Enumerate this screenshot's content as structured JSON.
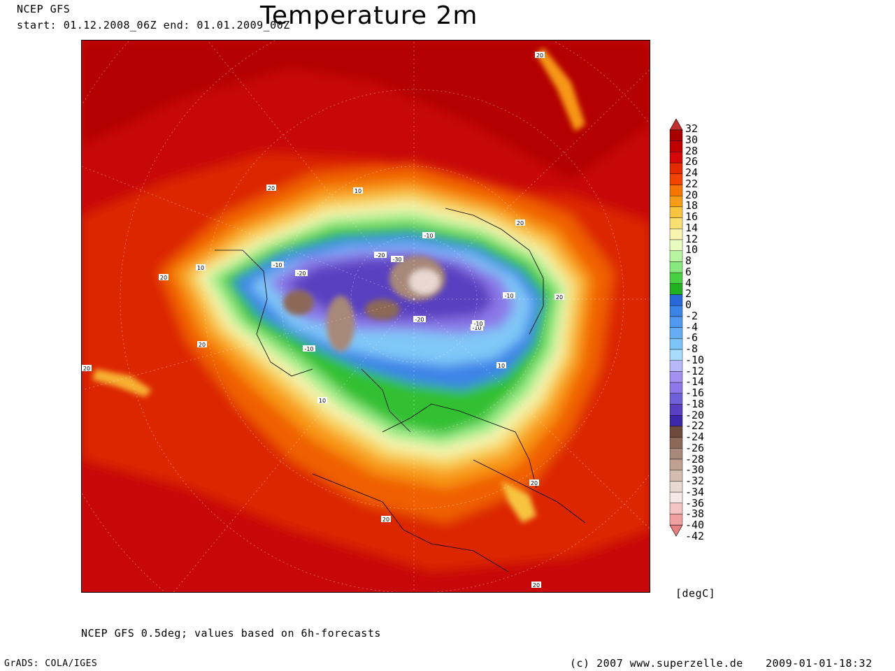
{
  "header": {
    "model": "NCEP GFS",
    "period": "start: 01.12.2008_06Z end: 01.01.2009_00Z",
    "title": "Temperature 2m"
  },
  "map": {
    "projection": "polar stereographic, northern hemisphere",
    "contour_labels": [
      "20",
      "10",
      "-10",
      "-20",
      "-30",
      "-10",
      "-20",
      "-10",
      "-20",
      "-10",
      "-10",
      "20",
      "10",
      "20",
      "20",
      "10",
      "20",
      "20",
      "20",
      "20",
      "10",
      "20",
      "20",
      "-10"
    ]
  },
  "colorbar": {
    "unit": "[degC]",
    "levels": [
      "32",
      "30",
      "28",
      "26",
      "24",
      "22",
      "20",
      "18",
      "16",
      "14",
      "12",
      "10",
      "8",
      "6",
      "4",
      "2",
      "0",
      "-2",
      "-4",
      "-6",
      "-8",
      "-10",
      "-12",
      "-14",
      "-16",
      "-18",
      "-20",
      "-22",
      "-24",
      "-26",
      "-28",
      "-30",
      "-32",
      "-34",
      "-36",
      "-38",
      "-40",
      "-42"
    ],
    "colors": [
      "#c2302e",
      "#a80000",
      "#c00000",
      "#d40808",
      "#e42a00",
      "#f04400",
      "#f67400",
      "#f89c18",
      "#f8c440",
      "#f8e070",
      "#f8f4b0",
      "#e8fcc0",
      "#b8f4a0",
      "#88e880",
      "#48d040",
      "#20b020",
      "#2868d8",
      "#3c84e8",
      "#5098f0",
      "#64acf4",
      "#7cc4f8",
      "#a8dcfc",
      "#b8b8f8",
      "#a490f0",
      "#8c78e8",
      "#7060d8",
      "#5840c0",
      "#3c28a8",
      "#6e4a3c",
      "#8c6858",
      "#a88878",
      "#c0a090",
      "#d4bcb0",
      "#e8d8d0",
      "#f4e8e4",
      "#f4c4c4",
      "#f0a0a0",
      "#e88080"
    ]
  },
  "footer": {
    "source": "NCEP GFS 0.5deg; values based on 6h-forecasts",
    "software": "GrADS: COLA/IGES",
    "copyright": "(c) 2007 www.superzelle.de",
    "timestamp": "2009-01-01-18:32"
  }
}
